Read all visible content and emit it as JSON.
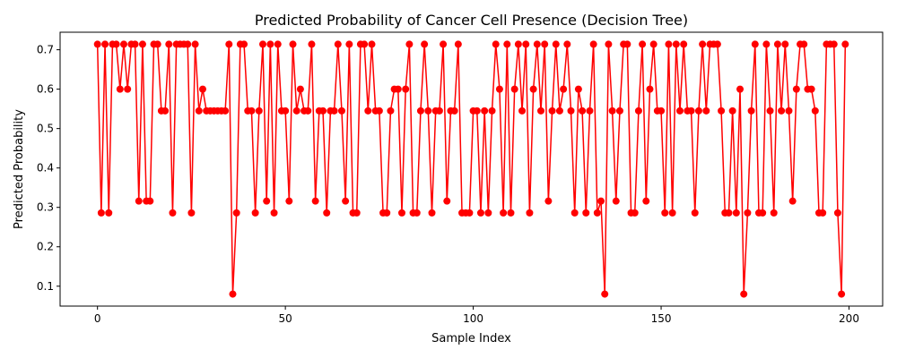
{
  "chart_data": {
    "type": "line",
    "title": "Predicted Probability of Cancer Cell Presence (Decision Tree)",
    "xlabel": "Sample Index",
    "ylabel": "Predicted Probability",
    "xlim": [
      -9.95,
      208.95
    ],
    "ylim": [
      0.0495,
      0.7445
    ],
    "xticks": [
      0,
      50,
      100,
      150,
      200
    ],
    "xtick_labels": [
      "0",
      "50",
      "100",
      "150",
      "200"
    ],
    "yticks": [
      0.1,
      0.2,
      0.3,
      0.4,
      0.5,
      0.6,
      0.7
    ],
    "ytick_labels": [
      "0.1",
      "0.2",
      "0.3",
      "0.4",
      "0.5",
      "0.6",
      "0.7"
    ],
    "grid": false,
    "legend": "none",
    "series": [
      {
        "color": "#ff0000",
        "marker": "circle",
        "x_start": 0,
        "x_step": 1,
        "values": [
          0.714,
          0.286,
          0.714,
          0.286,
          0.714,
          0.714,
          0.6,
          0.714,
          0.6,
          0.714,
          0.714,
          0.316,
          0.714,
          0.316,
          0.316,
          0.714,
          0.714,
          0.545,
          0.545,
          0.714,
          0.286,
          0.714,
          0.714,
          0.714,
          0.714,
          0.286,
          0.714,
          0.545,
          0.6,
          0.545,
          0.545,
          0.545,
          0.545,
          0.545,
          0.545,
          0.714,
          0.08,
          0.286,
          0.714,
          0.714,
          0.545,
          0.545,
          0.286,
          0.545,
          0.714,
          0.316,
          0.714,
          0.286,
          0.714,
          0.545,
          0.545,
          0.316,
          0.714,
          0.545,
          0.6,
          0.545,
          0.545,
          0.714,
          0.316,
          0.545,
          0.545,
          0.286,
          0.545,
          0.545,
          0.714,
          0.545,
          0.316,
          0.714,
          0.286,
          0.286,
          0.714,
          0.714,
          0.545,
          0.714,
          0.545,
          0.545,
          0.286,
          0.286,
          0.545,
          0.6,
          0.6,
          0.286,
          0.6,
          0.714,
          0.286,
          0.286,
          0.545,
          0.714,
          0.545,
          0.286,
          0.545,
          0.545,
          0.714,
          0.316,
          0.545,
          0.545,
          0.714,
          0.286,
          0.286,
          0.286,
          0.545,
          0.545,
          0.286,
          0.545,
          0.286,
          0.545,
          0.714,
          0.6,
          0.286,
          0.714,
          0.286,
          0.6,
          0.714,
          0.545,
          0.714,
          0.286,
          0.6,
          0.714,
          0.545,
          0.714,
          0.316,
          0.545,
          0.714,
          0.545,
          0.6,
          0.714,
          0.545,
          0.286,
          0.6,
          0.545,
          0.286,
          0.545,
          0.714,
          0.286,
          0.316,
          0.08,
          0.714,
          0.545,
          0.316,
          0.545,
          0.714,
          0.714,
          0.286,
          0.286,
          0.545,
          0.714,
          0.316,
          0.6,
          0.714,
          0.545,
          0.545,
          0.286,
          0.714,
          0.286,
          0.714,
          0.545,
          0.714,
          0.545,
          0.545,
          0.286,
          0.545,
          0.714,
          0.545,
          0.714,
          0.714,
          0.714,
          0.545,
          0.286,
          0.286,
          0.545,
          0.286,
          0.6,
          0.08,
          0.286,
          0.545,
          0.714,
          0.286,
          0.286,
          0.714,
          0.545,
          0.286,
          0.714,
          0.545,
          0.714,
          0.545,
          0.316,
          0.6,
          0.714,
          0.714,
          0.6,
          0.6,
          0.545,
          0.286,
          0.286,
          0.714,
          0.714,
          0.714,
          0.286,
          0.08,
          0.714
        ]
      }
    ]
  }
}
